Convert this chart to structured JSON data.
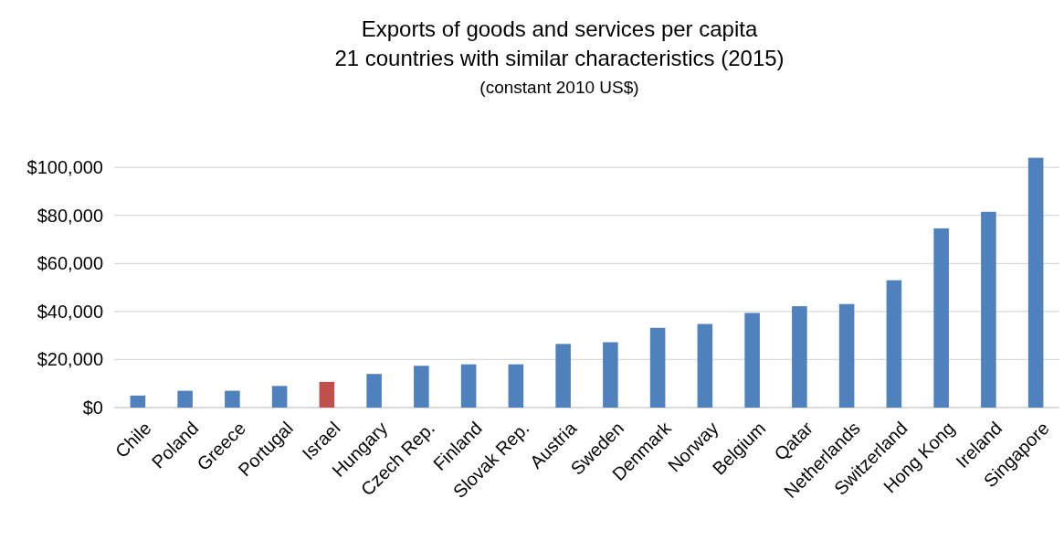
{
  "chart_data": {
    "type": "bar",
    "title": "Exports of goods and services per capita",
    "subtitle": "21 countries with similar characteristics (2015)",
    "annotations": [
      "(constant 2010 US$)"
    ],
    "categories": [
      "Chile",
      "Poland",
      "Greece",
      "Portugal",
      "Israel",
      "Hungary",
      "Czech Rep.",
      "Finland",
      "Slovak Rep.",
      "Austria",
      "Sweden",
      "Denmark",
      "Norway",
      "Belgium",
      "Qatar",
      "Netherlands",
      "Switzerland",
      "Hong Kong",
      "Ireland",
      "Singapore"
    ],
    "values": [
      5000,
      7000,
      7000,
      9000,
      10700,
      14000,
      17400,
      18000,
      18000,
      26500,
      27200,
      33200,
      34800,
      39400,
      42200,
      43100,
      53000,
      74600,
      81500,
      104000
    ],
    "colors": [
      "#4f81bd",
      "#4f81bd",
      "#4f81bd",
      "#4f81bd",
      "#c0504d",
      "#4f81bd",
      "#4f81bd",
      "#4f81bd",
      "#4f81bd",
      "#4f81bd",
      "#4f81bd",
      "#4f81bd",
      "#4f81bd",
      "#4f81bd",
      "#4f81bd",
      "#4f81bd",
      "#4f81bd",
      "#4f81bd",
      "#4f81bd",
      "#4f81bd"
    ],
    "ylim": [
      0,
      105000
    ],
    "yticks": [
      {
        "value": 0,
        "label": "$0"
      },
      {
        "value": 20000,
        "label": "$20,000"
      },
      {
        "value": 40000,
        "label": "$40,000"
      },
      {
        "value": 60000,
        "label": "$60,000"
      },
      {
        "value": 80000,
        "label": "$80,000"
      },
      {
        "value": 100000,
        "label": "$100,000"
      }
    ],
    "grid": "y"
  }
}
